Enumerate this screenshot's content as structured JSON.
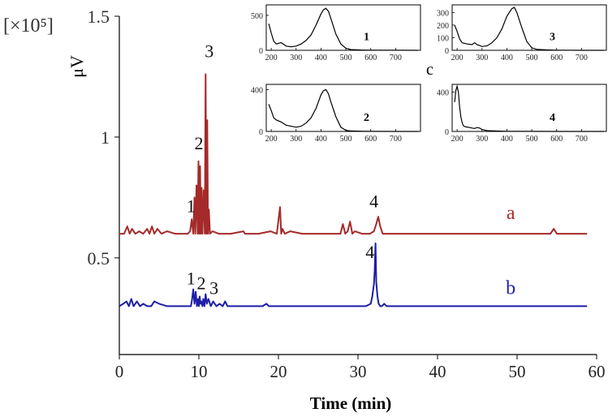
{
  "chart_data": [
    {
      "type": "line",
      "title": "",
      "xlabel": "Time (min)",
      "ylabel": "μV",
      "y_multiplier_label": "[×10⁵]",
      "xlim": [
        0,
        60
      ],
      "ylim": [
        0.1,
        1.5
      ],
      "xticks": [
        "0",
        "10",
        "20",
        "30",
        "40",
        "50",
        "60"
      ],
      "yticks": [
        {
          "value": 0.5,
          "label": "0.5"
        },
        {
          "value": 1.0,
          "label": "1"
        },
        {
          "value": 1.5,
          "label": "1.5"
        }
      ],
      "grid": false,
      "series": [
        {
          "name": "a",
          "color": "#a52a2a",
          "x": [
            0.0,
            0.6,
            1.0,
            1.3,
            1.6,
            2.0,
            2.5,
            3.0,
            3.5,
            3.8,
            4.1,
            4.4,
            4.8,
            5.3,
            6.0,
            7.0,
            8.0,
            8.6,
            8.9,
            9.1,
            9.3,
            9.45,
            9.55,
            9.7,
            9.85,
            9.95,
            10.05,
            10.15,
            10.25,
            10.35,
            10.45,
            10.6,
            10.75,
            10.85,
            10.95,
            11.05,
            11.15,
            11.25,
            11.4,
            11.7,
            12.5,
            14.0,
            15.6,
            15.8,
            16.0,
            17.5,
            19.0,
            19.8,
            20.2,
            20.35,
            20.5,
            20.8,
            21.5,
            23.0,
            25.0,
            26.5,
            27.8,
            28.1,
            28.4,
            28.7,
            29.0,
            29.3,
            29.6,
            30.5,
            31.5,
            32.0,
            32.3,
            32.55,
            32.8,
            33.1,
            33.5,
            35.0,
            40.0,
            45.0,
            50.0,
            54.2,
            54.6,
            55.0,
            56.0,
            58.8
          ],
          "y": [
            0.6,
            0.6,
            0.63,
            0.6,
            0.62,
            0.6,
            0.61,
            0.6,
            0.62,
            0.6,
            0.63,
            0.6,
            0.62,
            0.6,
            0.61,
            0.6,
            0.6,
            0.6,
            0.61,
            0.66,
            0.6,
            0.75,
            0.6,
            0.8,
            0.6,
            0.9,
            0.6,
            0.88,
            0.6,
            0.79,
            0.6,
            0.78,
            0.6,
            1.26,
            0.6,
            1.07,
            0.6,
            0.7,
            0.6,
            0.61,
            0.6,
            0.6,
            0.61,
            0.6,
            0.6,
            0.6,
            0.61,
            0.6,
            0.71,
            0.6,
            0.62,
            0.6,
            0.61,
            0.6,
            0.6,
            0.6,
            0.6,
            0.64,
            0.6,
            0.61,
            0.65,
            0.6,
            0.61,
            0.6,
            0.6,
            0.61,
            0.64,
            0.67,
            0.63,
            0.6,
            0.6,
            0.6,
            0.6,
            0.6,
            0.6,
            0.6,
            0.62,
            0.6,
            0.6,
            0.6
          ]
        },
        {
          "name": "b",
          "color": "#1e1ea8",
          "x": [
            0.0,
            0.5,
            0.9,
            1.2,
            1.5,
            1.8,
            2.2,
            2.6,
            3.0,
            3.5,
            4.0,
            4.4,
            5.0,
            6.0,
            7.0,
            8.5,
            9.0,
            9.15,
            9.3,
            9.45,
            9.6,
            9.75,
            9.9,
            10.0,
            10.1,
            10.2,
            10.3,
            10.45,
            10.55,
            10.7,
            10.85,
            11.0,
            11.2,
            11.5,
            11.8,
            12.2,
            12.6,
            13.0,
            13.3,
            13.6,
            14.0,
            16.0,
            18.0,
            18.5,
            18.8,
            19.0,
            21.0,
            24.0,
            27.0,
            30.0,
            31.0,
            31.6,
            31.8,
            32.0,
            32.1,
            32.2,
            32.3,
            32.45,
            32.6,
            32.8,
            33.0,
            33.3,
            33.6,
            35.0,
            40.0,
            45.0,
            50.0,
            55.0,
            58.8
          ],
          "y": [
            0.3,
            0.31,
            0.32,
            0.3,
            0.33,
            0.3,
            0.32,
            0.3,
            0.31,
            0.3,
            0.3,
            0.32,
            0.31,
            0.3,
            0.3,
            0.3,
            0.3,
            0.33,
            0.37,
            0.31,
            0.36,
            0.3,
            0.33,
            0.3,
            0.34,
            0.31,
            0.32,
            0.3,
            0.33,
            0.3,
            0.35,
            0.31,
            0.33,
            0.3,
            0.32,
            0.3,
            0.31,
            0.3,
            0.32,
            0.3,
            0.3,
            0.3,
            0.3,
            0.31,
            0.3,
            0.3,
            0.3,
            0.3,
            0.3,
            0.3,
            0.3,
            0.31,
            0.34,
            0.39,
            0.45,
            0.56,
            0.4,
            0.34,
            0.31,
            0.3,
            0.3,
            0.31,
            0.3,
            0.3,
            0.3,
            0.3,
            0.3,
            0.3,
            0.3
          ]
        }
      ],
      "peak_labels": [
        {
          "text": "1",
          "x": 9.0,
          "y": 0.69
        },
        {
          "text": "2",
          "x": 10.0,
          "y": 0.95
        },
        {
          "text": "3",
          "x": 11.3,
          "y": 1.33
        },
        {
          "text": "4",
          "x": 32.0,
          "y": 0.71
        },
        {
          "text": "1",
          "x": 9.0,
          "y": 0.39
        },
        {
          "text": "2",
          "x": 10.3,
          "y": 0.37
        },
        {
          "text": "3",
          "x": 11.9,
          "y": 0.35
        },
        {
          "text": "4",
          "x": 31.5,
          "y": 0.5
        }
      ],
      "series_labels": [
        {
          "text": "a",
          "x": 49.2,
          "y": 0.66,
          "color": "#a52a2a"
        },
        {
          "text": "b",
          "x": 49.2,
          "y": 0.35,
          "color": "#1e1ea8"
        }
      ]
    },
    {
      "type": "line",
      "panel_label": "1",
      "xlim": [
        180,
        800
      ],
      "ylim": [
        0,
        650
      ],
      "xticks": [
        "200",
        "300",
        "400",
        "500",
        "600",
        "700"
      ],
      "yticks": [
        {
          "value": 0,
          "label": "0"
        },
        {
          "value": 500,
          "label": "500"
        }
      ],
      "series": [
        {
          "x": [
            190,
            200,
            210,
            220,
            240,
            260,
            280,
            300,
            320,
            340,
            360,
            380,
            400,
            410,
            420,
            430,
            440,
            460,
            480,
            500,
            520,
            560,
            600,
            700,
            790
          ],
          "y": [
            380,
            250,
            130,
            90,
            110,
            60,
            50,
            60,
            90,
            140,
            220,
            360,
            520,
            580,
            600,
            560,
            450,
            230,
            90,
            30,
            10,
            5,
            2,
            1,
            0
          ]
        }
      ]
    },
    {
      "type": "line",
      "panel_label": "3",
      "xlim": [
        180,
        800
      ],
      "ylim": [
        0,
        360
      ],
      "xticks": [
        "200",
        "300",
        "400",
        "500",
        "600",
        "700"
      ],
      "yticks": [
        {
          "value": 0,
          "label": "0"
        },
        {
          "value": 100,
          "label": "100"
        },
        {
          "value": 200,
          "label": "200"
        },
        {
          "value": 300,
          "label": "300"
        }
      ],
      "series": [
        {
          "x": [
            190,
            200,
            210,
            220,
            240,
            260,
            270,
            280,
            300,
            320,
            340,
            360,
            380,
            400,
            420,
            430,
            440,
            460,
            480,
            500,
            520,
            560,
            600,
            700,
            790
          ],
          "y": [
            200,
            150,
            90,
            60,
            50,
            45,
            60,
            45,
            30,
            35,
            60,
            100,
            170,
            270,
            330,
            340,
            300,
            180,
            70,
            20,
            8,
            3,
            1,
            0,
            0
          ]
        }
      ]
    },
    {
      "type": "line",
      "panel_label": "2",
      "xlim": [
        180,
        800
      ],
      "ylim": [
        0,
        450
      ],
      "xticks": [
        "200",
        "300",
        "400",
        "500",
        "600",
        "700"
      ],
      "yticks": [
        {
          "value": 0,
          "label": "0"
        },
        {
          "value": 400,
          "label": "400"
        }
      ],
      "series": [
        {
          "x": [
            190,
            200,
            210,
            220,
            240,
            260,
            280,
            300,
            320,
            340,
            360,
            380,
            400,
            410,
            420,
            430,
            440,
            460,
            480,
            500,
            520,
            560,
            600,
            700,
            790
          ],
          "y": [
            260,
            200,
            130,
            110,
            90,
            60,
            50,
            40,
            50,
            80,
            130,
            220,
            350,
            390,
            400,
            360,
            280,
            140,
            40,
            10,
            5,
            2,
            1,
            0,
            0
          ]
        }
      ]
    },
    {
      "type": "line",
      "panel_label": "4",
      "xlim": [
        180,
        800
      ],
      "ylim": [
        0,
        480
      ],
      "xticks": [
        "200",
        "300",
        "400",
        "500",
        "600",
        "700"
      ],
      "yticks": [
        {
          "value": 0,
          "label": "0"
        },
        {
          "value": 400,
          "label": "400"
        }
      ],
      "series": [
        {
          "x": [
            190,
            195,
            200,
            205,
            210,
            215,
            220,
            225,
            230,
            240,
            250,
            260,
            270,
            280,
            290,
            300,
            320,
            360,
            400,
            500,
            600,
            700,
            790
          ],
          "y": [
            300,
            420,
            460,
            400,
            250,
            150,
            90,
            60,
            50,
            45,
            40,
            35,
            30,
            40,
            35,
            20,
            8,
            4,
            2,
            1,
            0,
            0,
            0
          ]
        }
      ]
    }
  ],
  "inset_group_label": "c"
}
